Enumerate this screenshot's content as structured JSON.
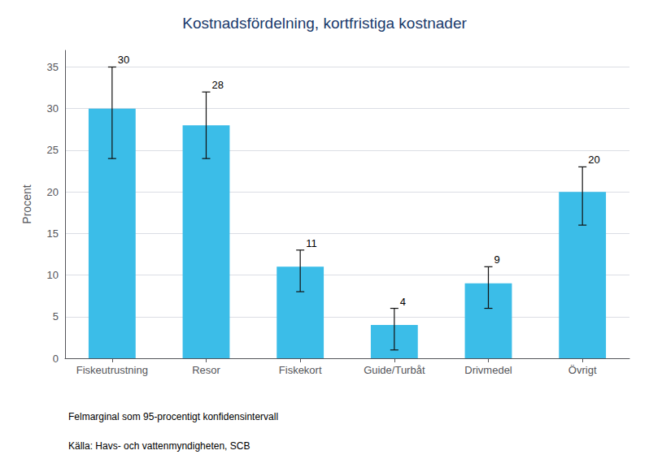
{
  "chart_data": {
    "type": "bar",
    "title": "Kostnadsfördelning, kortfristiga kostnader",
    "categories": [
      "Fiskeutrustning",
      "Resor",
      "Fiskekort",
      "Guide/Turbåt",
      "Drivmedel",
      "Övrigt"
    ],
    "values": [
      30,
      28,
      11,
      4,
      9,
      20
    ],
    "yerr_upper": [
      5,
      4,
      2,
      2,
      2,
      3
    ],
    "yerr_lower": [
      6,
      4,
      3,
      3,
      3,
      4
    ],
    "color": "#3bbde8",
    "ylabel": "Procent",
    "ylim": [
      0,
      37
    ],
    "yticks": [
      0,
      5,
      10,
      15,
      20,
      25,
      30,
      35
    ],
    "grid": true,
    "data_labels": true,
    "annotations": [
      "Felmarginal som 95-procentigt konfidensintervall",
      "Källa: Havs- och vattenmyndigheten, SCB"
    ]
  }
}
